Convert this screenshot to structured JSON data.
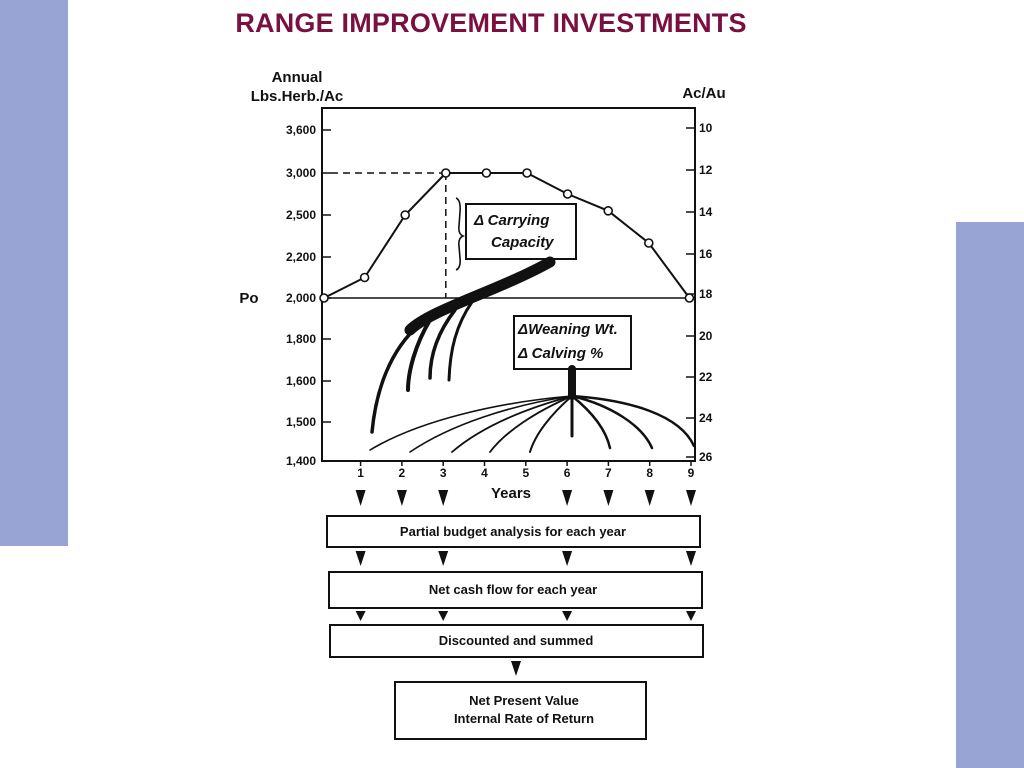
{
  "slide": {
    "title": "RANGE IMPROVEMENT INVESTMENTS",
    "accent_color": "#97a4d4",
    "title_color": "#7a1040"
  },
  "chart_data": {
    "type": "line",
    "left_axis_title": [
      "Annual",
      "Lbs.Herb./Ac"
    ],
    "right_axis_title": "Ac/Au",
    "xlabel": "Years",
    "baseline_label": "Po",
    "y_left_ticks": [
      "3,600",
      "3,000",
      "2,500",
      "2,200",
      "2,000",
      "1,800",
      "1,600",
      "1,500",
      "1,400"
    ],
    "y_right_ticks": [
      "10",
      "12",
      "14",
      "16",
      "18",
      "20",
      "22",
      "24",
      "26"
    ],
    "x": [
      0,
      1,
      2,
      3,
      4,
      5,
      6,
      7,
      8,
      9
    ],
    "x_tick_labels": [
      "1",
      "2",
      "3",
      "4",
      "5",
      "6",
      "7",
      "8",
      "9"
    ],
    "series": [
      {
        "values": [
          2000,
          2100,
          2500,
          3000,
          3000,
          3000,
          2750,
          2550,
          2300,
          2000
        ]
      }
    ],
    "reference_level": 3000,
    "reference_year": 3
  },
  "callouts": {
    "carrying_capacity": [
      "Δ Carrying",
      "Capacity"
    ],
    "weaning_calving": [
      "ΔWeaning Wt.",
      "Δ Calving %"
    ]
  },
  "flow": {
    "box1": "Partial budget analysis for each year",
    "box2": "Net cash flow for each year",
    "box3": "Discounted and summed",
    "box4": [
      "Net Present Value",
      "Internal Rate of Return"
    ]
  }
}
